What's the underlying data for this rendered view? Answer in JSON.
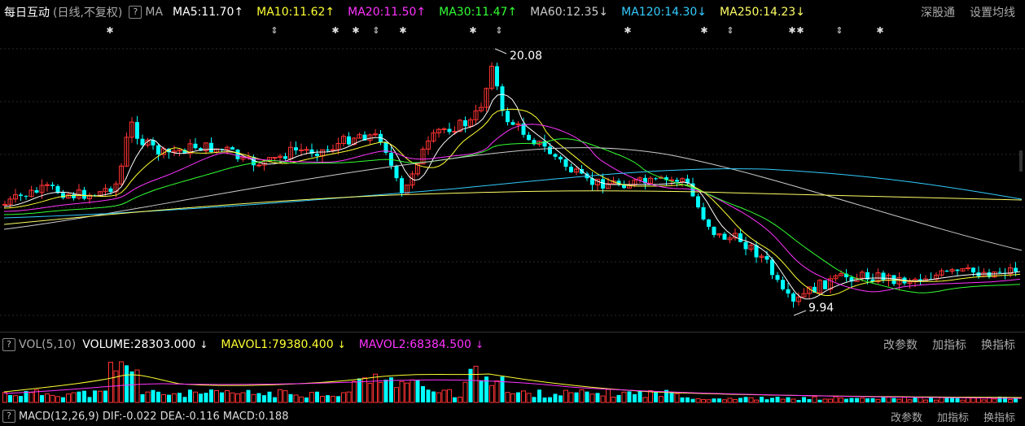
{
  "header": {
    "stock_name": "每日互动",
    "adjust_mode": "(日线,不复权)",
    "help_icon": "?",
    "ma_label": "MA",
    "ma_items": [
      {
        "text": "MA5:11.70",
        "arrow": "↑",
        "color": "#ffffff"
      },
      {
        "text": "MA10:11.62",
        "arrow": "↑",
        "color": "#ffff33"
      },
      {
        "text": "MA20:11.50",
        "arrow": "↑",
        "color": "#ff33ff"
      },
      {
        "text": "MA30:11.47",
        "arrow": "↑",
        "color": "#33ff33"
      },
      {
        "text": "MA60:12.35",
        "arrow": "↓",
        "color": "#cccccc"
      },
      {
        "text": "MA120:14.30",
        "arrow": "↓",
        "color": "#33ccff"
      },
      {
        "text": "MA250:14.23",
        "arrow": "↓",
        "color": "#ffff66"
      }
    ],
    "links": [
      "深股通",
      "设置均线"
    ]
  },
  "annotations": {
    "high_label": "20.08",
    "low_label": "9.94"
  },
  "volume_header": {
    "help_icon": "?",
    "vol_label": "VOL(5,10)",
    "volume_text": "VOLUME:28303.000",
    "volume_arrow": "↓",
    "mavol1_text": "MAVOL1:79380.400",
    "mavol1_arrow": "↓",
    "mavol2_text": "MAVOL2:68384.500",
    "mavol2_arrow": "↓",
    "links": [
      "改参数",
      "加指标",
      "换指标"
    ]
  },
  "macd_header": {
    "help_icon": "?",
    "text": "MACD(12,26,9)  DIF:-0.022  DEA:-0.116  MACD:0.188",
    "links": [
      "改参数",
      "加指标",
      "换指标"
    ]
  },
  "colors": {
    "up": "#ff3333",
    "down": "#00ffff",
    "ma5": "#ffffff",
    "ma10": "#ffff33",
    "ma20": "#ff33ff",
    "ma30": "#33ff33",
    "ma60": "#cccccc",
    "ma120": "#33ccff",
    "ma250": "#ffff66"
  }
}
